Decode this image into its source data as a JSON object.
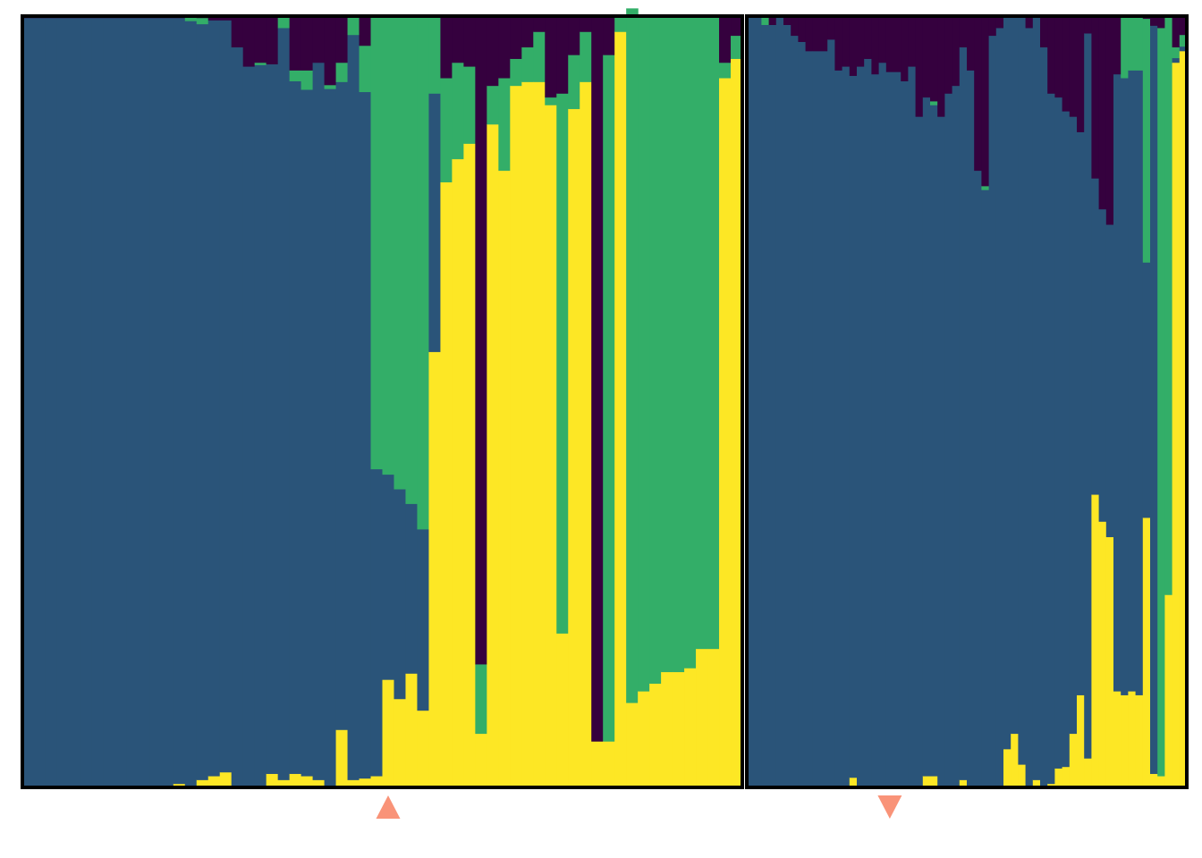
{
  "chart_data": [
    {
      "type": "stacked-bar",
      "panel": "left",
      "stack_order": [
        "yellow",
        "blue",
        "green",
        "purple"
      ],
      "colors": {
        "yellow": "#fde725",
        "blue": "#2a5479",
        "green": "#33ae68",
        "purple": "#35013e"
      },
      "ylim": [
        0,
        1
      ],
      "marker": {
        "shape": "triangle-up",
        "color": "#f99378",
        "bar_index": 31
      },
      "bars": [
        [
          0,
          0.998,
          0,
          0.002
        ],
        [
          0,
          0.998,
          0,
          0.002
        ],
        [
          0,
          0.998,
          0,
          0.002
        ],
        [
          0,
          0.998,
          0,
          0.002
        ],
        [
          0,
          0.998,
          0,
          0.002
        ],
        [
          0,
          0.998,
          0,
          0.002
        ],
        [
          0,
          0.998,
          0,
          0.002
        ],
        [
          0,
          0.998,
          0,
          0.002
        ],
        [
          0,
          0.998,
          0,
          0.002
        ],
        [
          0,
          0.998,
          0,
          0.002
        ],
        [
          0,
          0.998,
          0,
          0.002
        ],
        [
          0,
          0.998,
          0,
          0.002
        ],
        [
          0,
          0.998,
          0,
          0.002
        ],
        [
          0.005,
          0.993,
          0,
          0.002
        ],
        [
          0,
          0.994,
          0.006,
          0
        ],
        [
          0.01,
          0.98,
          0.008,
          0.002
        ],
        [
          0.015,
          0.98,
          0,
          0.005
        ],
        [
          0.02,
          0.975,
          0,
          0.005
        ],
        [
          0,
          0.96,
          0,
          0.04
        ],
        [
          0,
          0.935,
          0,
          0.065
        ],
        [
          0,
          0.937,
          0.003,
          0.06
        ],
        [
          0.018,
          0.92,
          0,
          0.062
        ],
        [
          0.01,
          0.975,
          0.015,
          0
        ],
        [
          0.018,
          0.898,
          0.014,
          0.07
        ],
        [
          0.015,
          0.89,
          0.025,
          0.07
        ],
        [
          0.01,
          0.93,
          0,
          0.06
        ],
        [
          0,
          0.906,
          0.005,
          0.089
        ],
        [
          0.075,
          0.84,
          0.025,
          0.06
        ],
        [
          0.01,
          0.966,
          0.024,
          0
        ],
        [
          0.012,
          0.89,
          0.06,
          0.038
        ],
        [
          0.015,
          0.398,
          0.587,
          0
        ],
        [
          0.14,
          0.266,
          0.594,
          0
        ],
        [
          0.115,
          0.272,
          0.613,
          0
        ],
        [
          0.148,
          0.22,
          0.632,
          0
        ],
        [
          0.1,
          0.235,
          0.665,
          0
        ],
        [
          0.565,
          0.335,
          0.1,
          0
        ],
        [
          0.785,
          0,
          0.135,
          0.08
        ],
        [
          0.815,
          0,
          0.125,
          0.06
        ],
        [
          0.835,
          0,
          0.1,
          0.065
        ],
        [
          0.07,
          0,
          0.09,
          0.84
        ],
        [
          0.86,
          0,
          0.05,
          0.09
        ],
        [
          0.8,
          0,
          0.12,
          0.08
        ],
        [
          0.91,
          0,
          0.035,
          0.055
        ],
        [
          0.915,
          0,
          0.045,
          0.04
        ],
        [
          0.915,
          0,
          0.065,
          0.02
        ],
        [
          0.885,
          0,
          0.01,
          0.105
        ],
        [
          0.2,
          0,
          0.7,
          0.1
        ],
        [
          0.88,
          0,
          0.07,
          0.05
        ],
        [
          0.915,
          0,
          0.065,
          0.02
        ],
        [
          0.06,
          0,
          0,
          0.94
        ],
        [
          0.06,
          0,
          0.89,
          0.05
        ],
        [
          0.98,
          0,
          0.02,
          0
        ],
        [
          0.11,
          0,
          0.9,
          0
        ],
        [
          0.125,
          0,
          0.875,
          0
        ],
        [
          0.135,
          0,
          0.865,
          0
        ],
        [
          0.15,
          0,
          0.85,
          0
        ],
        [
          0.15,
          0,
          0.85,
          0
        ],
        [
          0.155,
          0,
          0.845,
          0
        ],
        [
          0.18,
          0,
          0.82,
          0
        ],
        [
          0.18,
          0,
          0.82,
          0
        ],
        [
          0.92,
          0,
          0.02,
          0.06
        ],
        [
          0.945,
          0,
          0.03,
          0.025
        ]
      ]
    },
    {
      "type": "stacked-bar",
      "panel": "right",
      "stack_order": [
        "yellow",
        "blue",
        "green",
        "purple"
      ],
      "colors": {
        "yellow": "#fde725",
        "blue": "#2a5479",
        "green": "#33ae68",
        "purple": "#35013e"
      },
      "ylim": [
        0,
        1
      ],
      "marker": {
        "shape": "triangle-down",
        "color": "#f99378",
        "bar_index": 19
      },
      "bars": [
        [
          0,
          0.999,
          0,
          0.001
        ],
        [
          0,
          0.999,
          0,
          0.001
        ],
        [
          0,
          0.989,
          0.011,
          0
        ],
        [
          0,
          0.989,
          0,
          0.011
        ],
        [
          0,
          0.999,
          0,
          0.001
        ],
        [
          0,
          0.989,
          0,
          0.011
        ],
        [
          0,
          0.975,
          0,
          0.025
        ],
        [
          0,
          0.967,
          0,
          0.033
        ],
        [
          0,
          0.955,
          0,
          0.045
        ],
        [
          0,
          0.955,
          0,
          0.045
        ],
        [
          0,
          0.955,
          0,
          0.045
        ],
        [
          0,
          0.97,
          0,
          0.03
        ],
        [
          0,
          0.93,
          0,
          0.07
        ],
        [
          0,
          0.935,
          0,
          0.065
        ],
        [
          0.013,
          0.91,
          0,
          0.077
        ],
        [
          0,
          0.935,
          0,
          0.065
        ],
        [
          0,
          0.945,
          0,
          0.055
        ],
        [
          0,
          0.925,
          0,
          0.075
        ],
        [
          0,
          0.94,
          0,
          0.06
        ],
        [
          0,
          0.928,
          0,
          0.072
        ],
        [
          0,
          0.928,
          0,
          0.072
        ],
        [
          0,
          0.916,
          0,
          0.084
        ],
        [
          0,
          0.935,
          0,
          0.065
        ],
        [
          0,
          0.87,
          0,
          0.13
        ],
        [
          0.015,
          0.88,
          0,
          0.105
        ],
        [
          0.015,
          0.87,
          0.005,
          0.11
        ],
        [
          0,
          0.87,
          0,
          0.13
        ],
        [
          0,
          0.9,
          0,
          0.1
        ],
        [
          0,
          0.91,
          0,
          0.09
        ],
        [
          0.01,
          0.95,
          0,
          0.04
        ],
        [
          0,
          0.93,
          0,
          0.07
        ],
        [
          0,
          0.8,
          0,
          0.2
        ],
        [
          0,
          0.775,
          0.005,
          0.22
        ],
        [
          0,
          0.975,
          0,
          0.025
        ],
        [
          0,
          0.985,
          0,
          0.015
        ],
        [
          0.05,
          0.95,
          0,
          0
        ],
        [
          0.07,
          0.93,
          0,
          0
        ],
        [
          0.03,
          0.97,
          0,
          0
        ],
        [
          0,
          0.985,
          0,
          0.015
        ],
        [
          0.01,
          0.99,
          0,
          0
        ],
        [
          0,
          0.96,
          0,
          0.04
        ],
        [
          0.005,
          0.895,
          0,
          0.1
        ],
        [
          0.025,
          0.87,
          0,
          0.105
        ],
        [
          0.027,
          0.85,
          0,
          0.123
        ],
        [
          0.07,
          0.8,
          0,
          0.13
        ],
        [
          0.12,
          0.73,
          0,
          0.15
        ],
        [
          0.038,
          0.94,
          0,
          0.022
        ],
        [
          0.38,
          0.41,
          0,
          0.21
        ],
        [
          0.345,
          0.405,
          0,
          0.25
        ],
        [
          0.325,
          0.405,
          0,
          0.27
        ],
        [
          0.125,
          0.8,
          0,
          0.075
        ],
        [
          0.12,
          0.8,
          0.08,
          0
        ],
        [
          0.125,
          0.805,
          0.07,
          0
        ],
        [
          0.12,
          0.81,
          0.07,
          0
        ],
        [
          0.35,
          0.331,
          0.316,
          0.003
        ],
        [
          0.018,
          0.97,
          0,
          0.012
        ],
        [
          0.015,
          0,
          0.97,
          0.015
        ],
        [
          0.25,
          0,
          0.75,
          0
        ],
        [
          0.94,
          0.006,
          0.014,
          0.04
        ],
        [
          0.955,
          0.006,
          0.015,
          0.024
        ]
      ]
    }
  ]
}
